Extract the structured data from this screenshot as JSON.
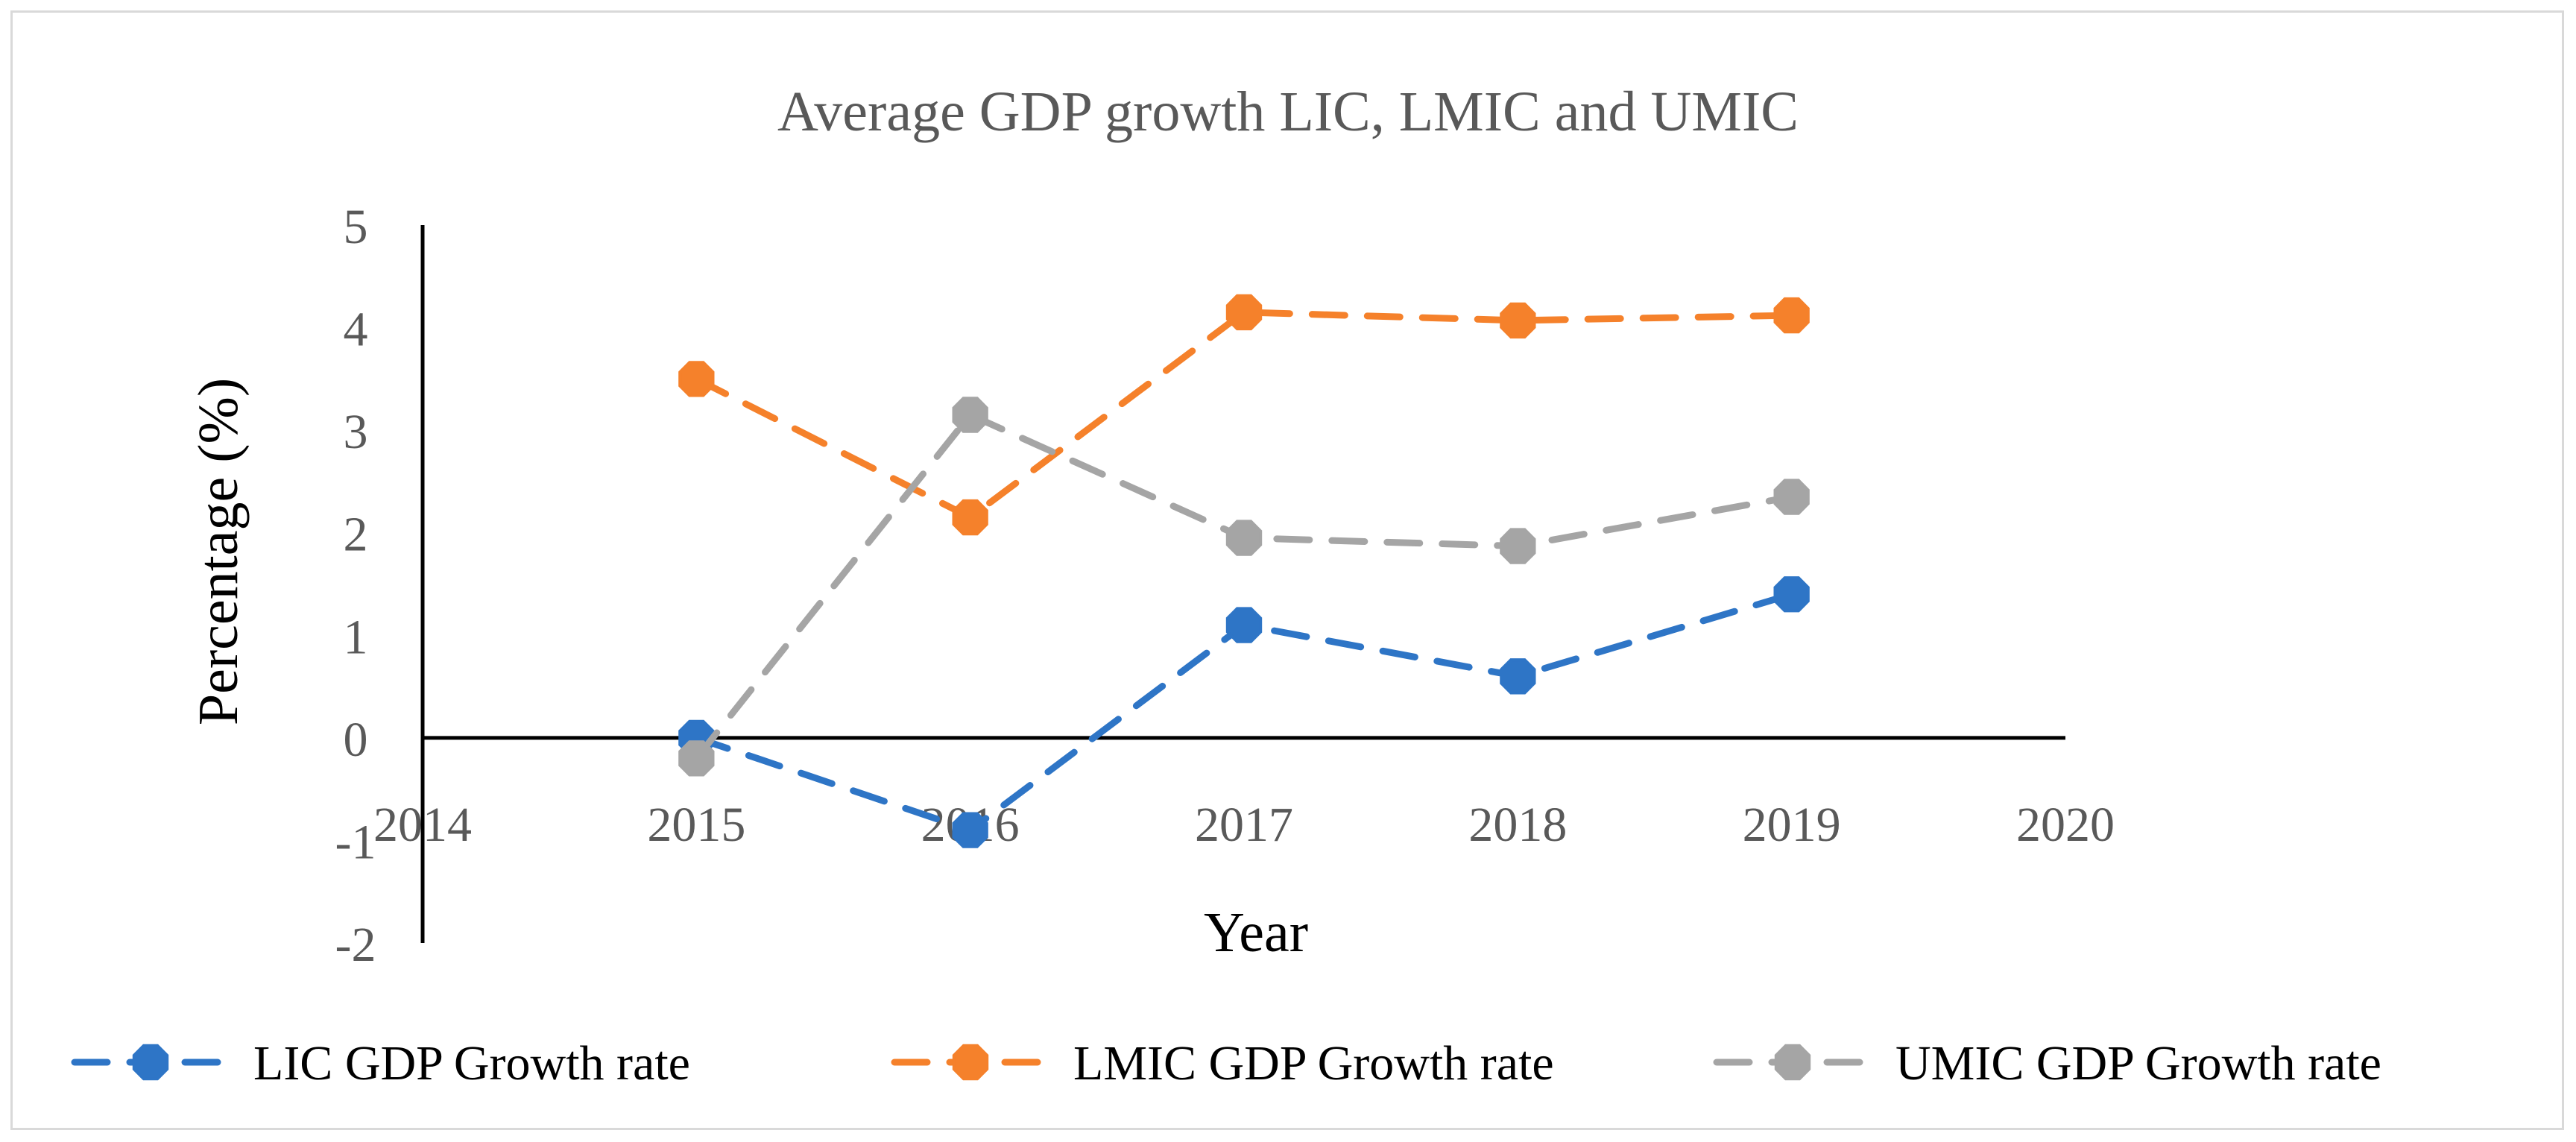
{
  "chart_data": {
    "type": "line",
    "title": "Average GDP growth LIC, LMIC and UMIC",
    "xlabel": "Year",
    "ylabel": "Percentage (%)",
    "xlim": [
      2014,
      2020
    ],
    "ylim": [
      -2,
      5
    ],
    "x_ticks": [
      "2014",
      "2015",
      "2016",
      "2017",
      "2018",
      "2019",
      "2020"
    ],
    "y_ticks": [
      "-2",
      "-1",
      "0",
      "1",
      "2",
      "3",
      "4",
      "5"
    ],
    "x": [
      2015,
      2016,
      2017,
      2018,
      2019
    ],
    "series": [
      {
        "name": "LIC GDP Growth rate",
        "color": "#2e75c6",
        "line_style": "dashed",
        "values": [
          0.0,
          -0.9,
          1.1,
          0.6,
          1.4
        ]
      },
      {
        "name": "LMIC GDP Growth rate",
        "color": "#f5812b",
        "line_style": "dashed",
        "values": [
          3.5,
          2.15,
          4.15,
          4.07,
          4.12
        ]
      },
      {
        "name": "UMIC GDP Growth rate",
        "color": "#a5a5a5",
        "line_style": "dashed",
        "values": [
          -0.2,
          3.15,
          1.95,
          1.87,
          2.35
        ]
      }
    ],
    "grid": false,
    "legend_position": "bottom"
  }
}
